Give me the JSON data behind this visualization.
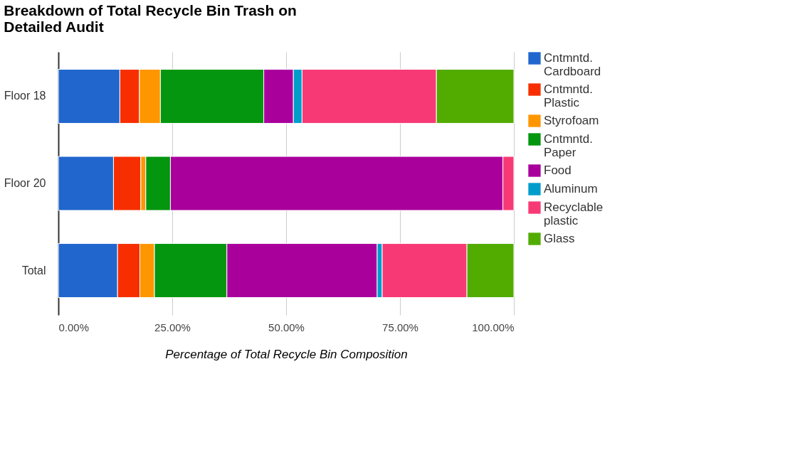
{
  "chart_data": {
    "type": "bar",
    "orientation": "horizontal",
    "stacked": true,
    "title": "Breakdown of Total Recycle Bin Trash on Detailed Audit",
    "xlabel": "Percentage of Total Recycle Bin Composition",
    "categories": [
      "Floor 18",
      "Floor 20",
      "Total"
    ],
    "series": [
      {
        "name": "Cntmntd. Cardboard",
        "color": "#2166cd",
        "values": [
          13.5,
          12.1,
          13.0
        ]
      },
      {
        "name": "Cntmntd. Plastic",
        "color": "#f72f00",
        "values": [
          4.3,
          6.0,
          4.9
        ]
      },
      {
        "name": "Styrofoam",
        "color": "#fe9600",
        "values": [
          4.6,
          1.1,
          3.2
        ]
      },
      {
        "name": "Cntmntd. Paper",
        "color": "#03960e",
        "values": [
          22.7,
          5.4,
          15.9
        ]
      },
      {
        "name": "Food",
        "color": "#a9009c",
        "values": [
          6.5,
          73.0,
          33.0
        ]
      },
      {
        "name": "Aluminum",
        "color": "#009dcb",
        "values": [
          1.9,
          null,
          1.1
        ]
      },
      {
        "name": "Recyclable plastic",
        "color": "#f73a76",
        "values": [
          29.5,
          2.4,
          18.6
        ]
      },
      {
        "name": "Glass",
        "color": "#52ac00",
        "values": [
          17.0,
          null,
          10.3
        ]
      }
    ],
    "xlim": [
      0,
      100
    ],
    "xticks": [
      {
        "value": 0,
        "label": "0.00%"
      },
      {
        "value": 25,
        "label": "25.00%"
      },
      {
        "value": 50,
        "label": "50.00%"
      },
      {
        "value": 75,
        "label": "75.00%"
      },
      {
        "value": 100,
        "label": "100.00%"
      }
    ],
    "grid": "x",
    "legend": "right"
  }
}
